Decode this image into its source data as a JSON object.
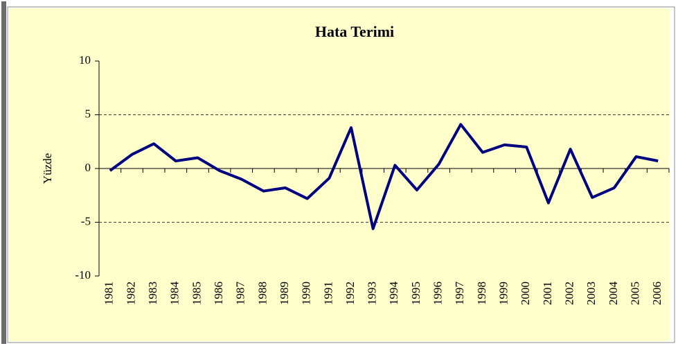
{
  "chart_data": {
    "type": "line",
    "title": "Hata Terimi",
    "y_label": "Yüzde",
    "categories": [
      "1981",
      "1982",
      "1983",
      "1984",
      "1985",
      "1986",
      "1987",
      "1988",
      "1989",
      "1990",
      "1991",
      "1992",
      "1993",
      "1994",
      "1995",
      "1996",
      "1997",
      "1998",
      "1999",
      "2000",
      "2001",
      "2002",
      "2003",
      "2004",
      "2005",
      "2006"
    ],
    "series": [
      {
        "name": "Hata Terimi",
        "color": "#000080",
        "values": [
          -0.2,
          1.3,
          2.3,
          0.7,
          1.0,
          -0.2,
          -1.0,
          -2.1,
          -1.8,
          -2.8,
          -0.9,
          3.8,
          -5.6,
          0.3,
          -2.0,
          0.4,
          4.1,
          1.5,
          2.2,
          2.0,
          -3.2,
          1.8,
          -2.7,
          -1.8,
          1.1,
          0.7
        ]
      }
    ],
    "ylim": [
      -10,
      10
    ],
    "yticks": [
      -10,
      -5,
      0,
      5,
      10
    ],
    "grid": true
  }
}
